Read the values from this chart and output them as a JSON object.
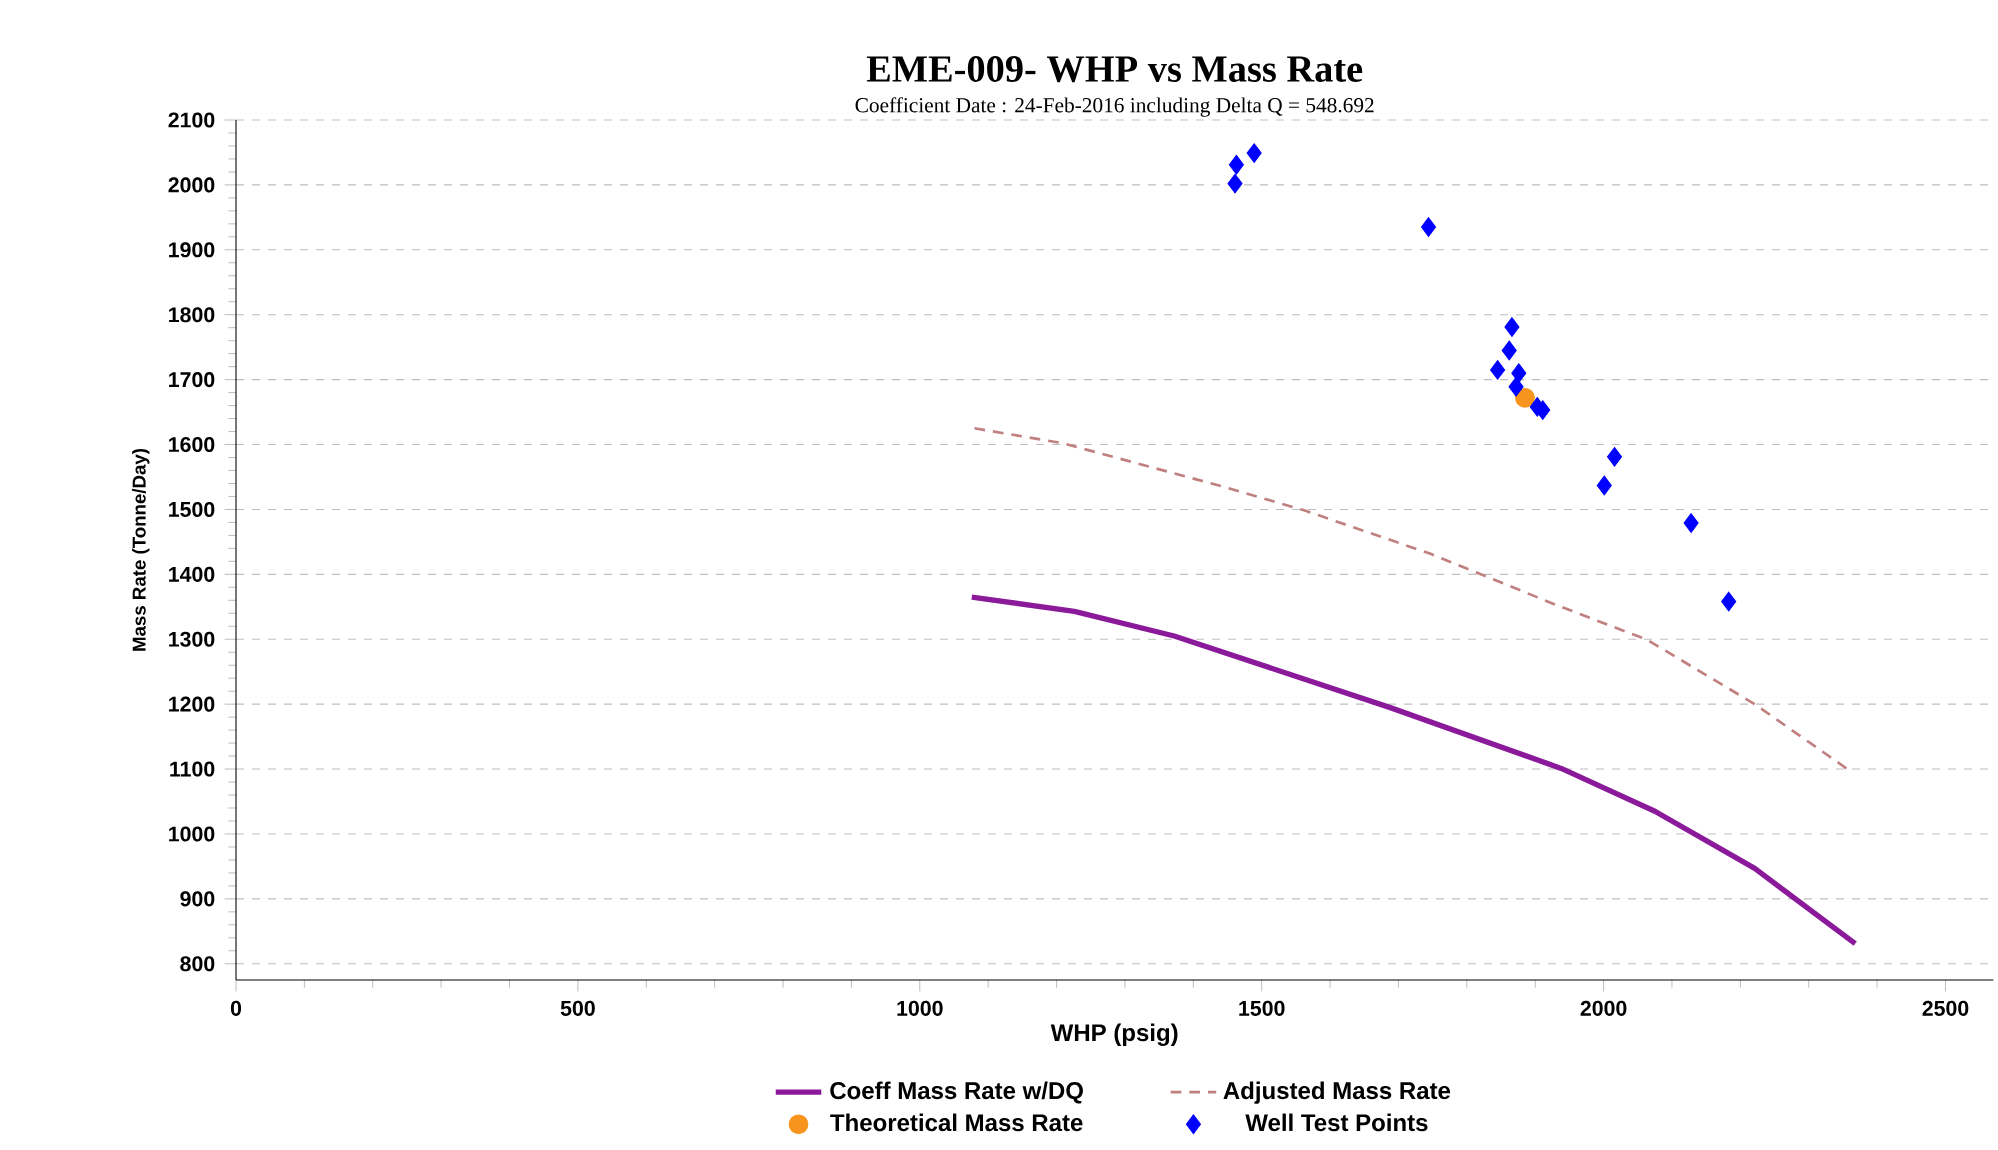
{
  "chart_data": {
    "type": "line",
    "title": "EME-009- WHP vs Mass Rate",
    "subtitle": "Coefficient Date : 24-Feb-2016 including Delta Q = 548.692",
    "xlabel": "WHP (psig)",
    "ylabel": "Mass Rate (Tonne/Day)",
    "xlim": [
      0,
      2570
    ],
    "ylim": [
      775,
      2100
    ],
    "xticks": [
      0,
      500,
      1000,
      1500,
      2000,
      2500
    ],
    "yticks": [
      800,
      900,
      1000,
      1100,
      1200,
      1300,
      1400,
      1500,
      1600,
      1700,
      1800,
      1900,
      2000,
      2100
    ],
    "grid": "y",
    "legend": "bottom",
    "series": [
      {
        "name": "Coeff Mass Rate w/DQ",
        "color": "#8b1a9b",
        "line_style": "solid",
        "marker": "none",
        "x": [
          1076,
          1226,
          1372,
          1687,
          1938,
          2075,
          2221,
          2368
        ],
        "values": [
          1365,
          1343,
          1305,
          1195,
          1101,
          1035,
          947,
          831
        ]
      },
      {
        "name": "Adjusted Mass Rate",
        "color": "#c08080",
        "line_style": "dashed",
        "marker": "none",
        "x": [
          1080,
          1209,
          1444,
          1561,
          1746,
          1928,
          2064,
          2221,
          2362
        ],
        "values": [
          1625,
          1602,
          1535,
          1499,
          1432,
          1354,
          1299,
          1200,
          1096
        ]
      },
      {
        "name": "Theoretical Mass Rate",
        "type": "scatter",
        "color": "#f7941d",
        "marker": "circle",
        "x": [
          1885
        ],
        "values": [
          1672
        ]
      },
      {
        "name": "Well Test Points",
        "type": "scatter",
        "color": "#0000ff",
        "marker": "diamond",
        "x": [
          1461,
          1463,
          1489,
          1744,
          1866,
          1862,
          1845,
          1876,
          1872,
          1903,
          1911,
          2016,
          2001,
          2128,
          2183
        ],
        "values": [
          2002,
          2031,
          2049,
          1935,
          1781,
          1745,
          1715,
          1710,
          1689,
          1658,
          1653,
          1581,
          1537,
          1479,
          1358
        ]
      }
    ]
  }
}
